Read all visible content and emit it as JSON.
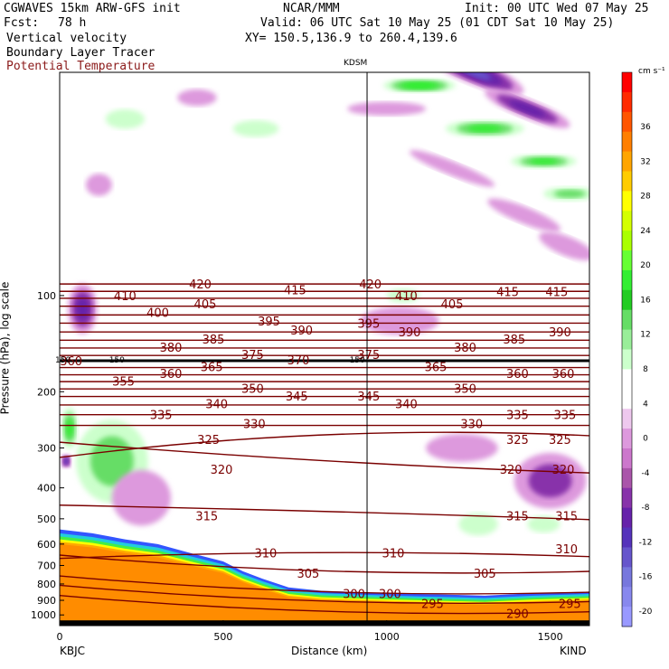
{
  "header": {
    "model": "CGWAVES 15km ARW-GFS init",
    "org": "NCAR/MMM",
    "init": "Init: 00 UTC Wed 07 May 25",
    "fcst_label": "Fcst:",
    "fcst_value": "78 h",
    "valid": "Valid: 06 UTC Sat 10 May 25 (01 CDT Sat 10 May 25)",
    "field1": "Vertical velocity",
    "xy": "XY= 150.5,136.9 to 260.4,139.6",
    "field2": "Boundary Layer Tracer",
    "field3": "Potential Temperature"
  },
  "chart_data": {
    "type": "heatmap",
    "title": "",
    "xlabel": "Distance (km)",
    "ylabel": "Pressure (hPa), log scale",
    "xlim": [
      0,
      1620
    ],
    "ylim": [
      1080,
      20
    ],
    "y_scale": "log",
    "x_ticks": [
      0,
      500,
      1000,
      1500
    ],
    "y_ticks": [
      100,
      200,
      300,
      400,
      500,
      600,
      700,
      800,
      900,
      1000
    ],
    "x_end_labels": {
      "left": "KBJC",
      "right": "KIND"
    },
    "marker": {
      "label": "KDSM",
      "x": 940
    },
    "colorbar": {
      "unit": "cm s⁻¹",
      "labels": [
        "36",
        "32",
        "28",
        "24",
        "20",
        "16",
        "12",
        "8",
        "4",
        "0",
        "-4",
        "-8",
        "-12",
        "-16",
        "-20"
      ],
      "colors": [
        "#ff0000",
        "#ff2a00",
        "#ff5500",
        "#ff7f00",
        "#ffa500",
        "#ffcc00",
        "#ffff00",
        "#d4ff00",
        "#aaff00",
        "#66ff33",
        "#33ee33",
        "#22cc22",
        "#66dd66",
        "#99ee99",
        "#ccffcc",
        "#ffffff",
        "#ffffff",
        "#eec8ee",
        "#dd99dd",
        "#cc77cc",
        "#aa55aa",
        "#8833aa",
        "#6622aa",
        "#5533bb",
        "#6655cc",
        "#7777dd",
        "#8888ee",
        "#9999ff"
      ]
    },
    "isentropes": [
      {
        "theta": 420,
        "p": 92
      },
      {
        "theta": 415,
        "p": 97
      },
      {
        "theta": 410,
        "p": 102
      },
      {
        "theta": 405,
        "p": 108
      },
      {
        "theta": 400,
        "p": 115
      },
      {
        "theta": 395,
        "p": 122
      },
      {
        "theta": 390,
        "p": 130
      },
      {
        "theta": 385,
        "p": 138
      },
      {
        "theta": 380,
        "p": 146
      },
      {
        "theta": 375,
        "p": 154
      },
      {
        "theta": 370,
        "p": 160
      },
      {
        "theta": 365,
        "p": 168
      },
      {
        "theta": 360,
        "p": 177
      },
      {
        "theta": 355,
        "p": 186
      },
      {
        "theta": 350,
        "p": 196
      },
      {
        "theta": 345,
        "p": 207
      },
      {
        "theta": 340,
        "p": 220
      },
      {
        "theta": 335,
        "p": 236
      },
      {
        "theta": 330,
        "p": 255
      },
      {
        "theta": 325,
        "p": 282
      },
      {
        "theta": 320,
        "p": 350
      },
      {
        "theta": 315,
        "p": 490
      },
      {
        "theta": 310,
        "p": 640
      },
      {
        "theta": 305,
        "p": 740
      },
      {
        "theta": 300,
        "p": 860
      },
      {
        "theta": 295,
        "p": 920
      },
      {
        "theta": 290,
        "p": 990
      }
    ],
    "isentrope_labels": [
      {
        "text": "420",
        "x": 430,
        "p": 92
      },
      {
        "text": "415",
        "x": 720,
        "p": 96
      },
      {
        "text": "420",
        "x": 950,
        "p": 92
      },
      {
        "text": "410",
        "x": 200,
        "p": 100
      },
      {
        "text": "405",
        "x": 445,
        "p": 106
      },
      {
        "text": "400",
        "x": 300,
        "p": 113
      },
      {
        "text": "395",
        "x": 640,
        "p": 120
      },
      {
        "text": "390",
        "x": 740,
        "p": 128
      },
      {
        "text": "385",
        "x": 470,
        "p": 137
      },
      {
        "text": "380",
        "x": 340,
        "p": 145
      },
      {
        "text": "375",
        "x": 590,
        "p": 153
      },
      {
        "text": "370",
        "x": 730,
        "p": 159
      },
      {
        "text": "365",
        "x": 465,
        "p": 167
      },
      {
        "text": "360",
        "x": 340,
        "p": 175
      },
      {
        "text": "355",
        "x": 195,
        "p": 185
      },
      {
        "text": "350",
        "x": 590,
        "p": 195
      },
      {
        "text": "345",
        "x": 725,
        "p": 206
      },
      {
        "text": "340",
        "x": 480,
        "p": 218
      },
      {
        "text": "335",
        "x": 310,
        "p": 236
      },
      {
        "text": "330",
        "x": 595,
        "p": 252
      },
      {
        "text": "325",
        "x": 455,
        "p": 282
      },
      {
        "text": "320",
        "x": 495,
        "p": 350
      },
      {
        "text": "315",
        "x": 450,
        "p": 490
      },
      {
        "text": "310",
        "x": 630,
        "p": 640
      },
      {
        "text": "305",
        "x": 760,
        "p": 740
      },
      {
        "text": "300",
        "x": 900,
        "p": 858
      },
      {
        "text": "295",
        "x": 1140,
        "p": 920
      },
      {
        "text": "290",
        "x": 1400,
        "p": 990
      },
      {
        "text": "410",
        "x": 1060,
        "p": 100
      },
      {
        "text": "405",
        "x": 1200,
        "p": 106
      },
      {
        "text": "415",
        "x": 1370,
        "p": 97
      },
      {
        "text": "415",
        "x": 1520,
        "p": 97
      },
      {
        "text": "395",
        "x": 945,
        "p": 122
      },
      {
        "text": "390",
        "x": 1070,
        "p": 130
      },
      {
        "text": "385",
        "x": 1390,
        "p": 137
      },
      {
        "text": "390",
        "x": 1530,
        "p": 130
      },
      {
        "text": "380",
        "x": 1240,
        "p": 145
      },
      {
        "text": "375",
        "x": 945,
        "p": 153
      },
      {
        "text": "365",
        "x": 1150,
        "p": 167
      },
      {
        "text": "360",
        "x": 1400,
        "p": 175
      },
      {
        "text": "360",
        "x": 1540,
        "p": 175
      },
      {
        "text": "350",
        "x": 1240,
        "p": 195
      },
      {
        "text": "345",
        "x": 945,
        "p": 206
      },
      {
        "text": "340",
        "x": 1060,
        "p": 218
      },
      {
        "text": "335",
        "x": 1400,
        "p": 236
      },
      {
        "text": "335",
        "x": 1545,
        "p": 236
      },
      {
        "text": "330",
        "x": 1260,
        "p": 252
      },
      {
        "text": "325",
        "x": 1400,
        "p": 282
      },
      {
        "text": "325",
        "x": 1530,
        "p": 282
      },
      {
        "text": "320",
        "x": 1380,
        "p": 350
      },
      {
        "text": "320",
        "x": 1540,
        "p": 350
      },
      {
        "text": "315",
        "x": 1400,
        "p": 490
      },
      {
        "text": "315",
        "x": 1550,
        "p": 490
      },
      {
        "text": "310",
        "x": 1020,
        "p": 640
      },
      {
        "text": "310",
        "x": 1550,
        "p": 620
      },
      {
        "text": "305",
        "x": 1300,
        "p": 740
      },
      {
        "text": "300",
        "x": 1010,
        "p": 858
      },
      {
        "text": "295",
        "x": 1560,
        "p": 920
      },
      {
        "text": "360",
        "x": 35,
        "p": 160
      }
    ],
    "tropopause_marks": [
      {
        "text": "150",
        "x": 10,
        "p": 158
      },
      {
        "text": "150",
        "x": 175,
        "p": 158
      },
      {
        "text": "150",
        "x": 910,
        "p": 158
      }
    ],
    "vertical_velocity_blobs": [
      {
        "x": 1270,
        "p": 20,
        "rx": 160,
        "rp": 0.09,
        "v": -14
      },
      {
        "x": 1430,
        "p": 26,
        "rx": 140,
        "rp": 0.07,
        "v": -10
      },
      {
        "x": 1100,
        "p": 22,
        "rx": 110,
        "rp": 0.05,
        "v": 14
      },
      {
        "x": 1300,
        "p": 30,
        "rx": 120,
        "rp": 0.06,
        "v": 12
      },
      {
        "x": 1480,
        "p": 38,
        "rx": 100,
        "rp": 0.05,
        "v": 10
      },
      {
        "x": 1560,
        "p": 48,
        "rx": 80,
        "rp": 0.05,
        "v": 8
      },
      {
        "x": 1000,
        "p": 26,
        "rx": 120,
        "rp": 0.05,
        "v": -4
      },
      {
        "x": 1200,
        "p": 40,
        "rx": 140,
        "rp": 0.05,
        "v": -4
      },
      {
        "x": 1420,
        "p": 56,
        "rx": 120,
        "rp": 0.06,
        "v": -4
      },
      {
        "x": 1550,
        "p": 70,
        "rx": 90,
        "rp": 0.07,
        "v": -4
      },
      {
        "x": 70,
        "p": 110,
        "rx": 45,
        "rp": 0.18,
        "v": -10
      },
      {
        "x": 1040,
        "p": 120,
        "rx": 120,
        "rp": 0.1,
        "v": -4
      },
      {
        "x": 1050,
        "p": 100,
        "rx": 50,
        "rp": 0.05,
        "v": 4
      },
      {
        "x": 1500,
        "p": 380,
        "rx": 110,
        "rp": 0.2,
        "v": -6
      },
      {
        "x": 1230,
        "p": 300,
        "rx": 110,
        "rp": 0.1,
        "v": -4
      },
      {
        "x": 160,
        "p": 330,
        "rx": 110,
        "rp": 0.3,
        "v": 6
      },
      {
        "x": 250,
        "p": 430,
        "rx": 90,
        "rp": 0.2,
        "v": -4
      },
      {
        "x": 1280,
        "p": 520,
        "rx": 60,
        "rp": 0.08,
        "v": 4
      },
      {
        "x": 1480,
        "p": 520,
        "rx": 50,
        "rp": 0.06,
        "v": 4
      },
      {
        "x": 200,
        "p": 28,
        "rx": 60,
        "rp": 0.07,
        "v": 4
      },
      {
        "x": 420,
        "p": 24,
        "rx": 60,
        "rp": 0.06,
        "v": -4
      },
      {
        "x": 600,
        "p": 30,
        "rx": 70,
        "rp": 0.06,
        "v": 4
      },
      {
        "x": 120,
        "p": 45,
        "rx": 40,
        "rp": 0.08,
        "v": -4
      },
      {
        "x": 30,
        "p": 260,
        "rx": 25,
        "rp": 0.15,
        "v": 10
      },
      {
        "x": 20,
        "p": 330,
        "rx": 15,
        "rp": 0.05,
        "v": -16
      }
    ],
    "terrain": [
      {
        "x": 0,
        "p": 600
      },
      {
        "x": 100,
        "p": 615
      },
      {
        "x": 200,
        "p": 640
      },
      {
        "x": 300,
        "p": 660
      },
      {
        "x": 400,
        "p": 700
      },
      {
        "x": 500,
        "p": 740
      },
      {
        "x": 560,
        "p": 790
      },
      {
        "x": 620,
        "p": 830
      },
      {
        "x": 700,
        "p": 880
      },
      {
        "x": 800,
        "p": 900
      },
      {
        "x": 940,
        "p": 910
      },
      {
        "x": 1100,
        "p": 920
      },
      {
        "x": 1300,
        "p": 930
      },
      {
        "x": 1450,
        "p": 915
      },
      {
        "x": 1620,
        "p": 905
      }
    ],
    "grid": false
  }
}
